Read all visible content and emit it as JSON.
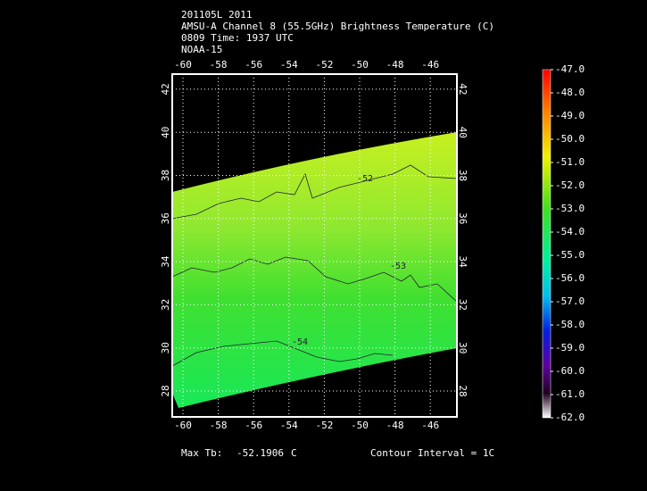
{
  "header": {
    "lines": [
      "201105L 2011",
      "AMSU-A Channel 8 (55.5GHz) Brightness Temperature (C)",
      "0809 Time: 1937 UTC",
      "NOAA-15"
    ]
  },
  "map": {
    "lon_ticks": [
      "-60",
      "-58",
      "-56",
      "-54",
      "-52",
      "-50",
      "-48",
      "-46"
    ],
    "lat_ticks": [
      "28",
      "30",
      "32",
      "34",
      "36",
      "38",
      "40",
      "42"
    ],
    "contour_labels": [
      "-52",
      "-53",
      "-54"
    ]
  },
  "colorbar": {
    "labels": [
      "-47.0",
      "-48.0",
      "-49.0",
      "-50.0",
      "-51.0",
      "-52.0",
      "-53.0",
      "-54.0",
      "-55.0",
      "-56.0",
      "-57.0",
      "-58.0",
      "-59.0",
      "-60.0",
      "-61.0",
      "-62.0"
    ]
  },
  "footer": {
    "max_label": "Max Tb:",
    "max_value": "-52.1906",
    "max_unit": "C",
    "contour_interval": "Contour Interval = 1C"
  }
}
